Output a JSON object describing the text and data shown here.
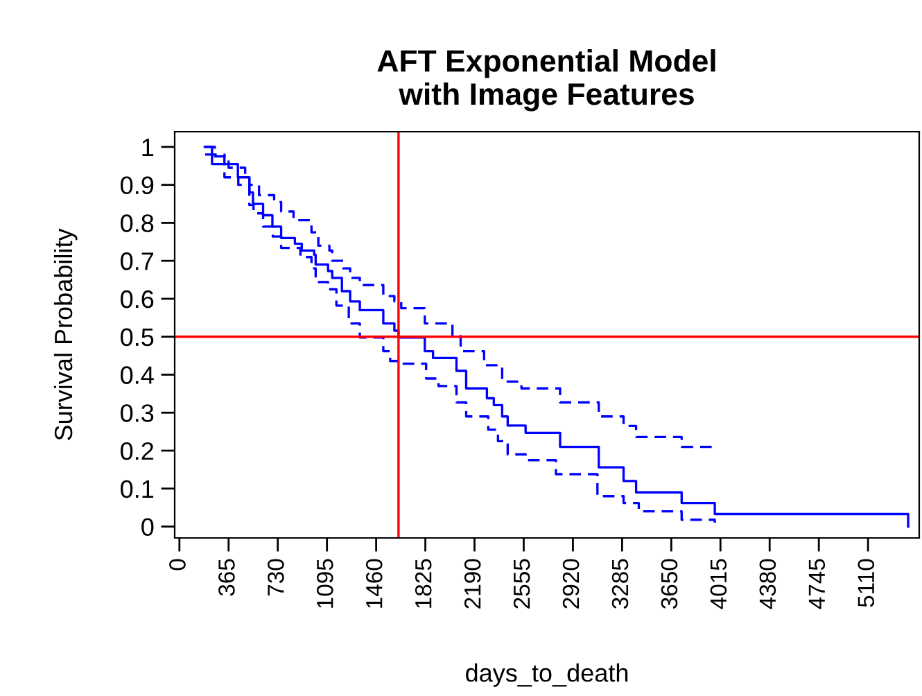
{
  "chart_data": {
    "type": "step",
    "title": "AFT Exponential Model\nwith Image Features",
    "xlabel": "days_to_death",
    "ylabel": "Survival Probability",
    "xlim": [
      -35,
      5490
    ],
    "ylim": [
      -0.03,
      1.04
    ],
    "xticks": [
      0,
      365,
      730,
      1095,
      1460,
      1825,
      2190,
      2555,
      2920,
      3285,
      3650,
      4015,
      4380,
      4745,
      5110
    ],
    "yticks": [
      0,
      {
        "value": 0.1,
        "label": "0.1"
      },
      {
        "value": 0.2,
        "label": "0.2"
      },
      {
        "value": 0.3,
        "label": "0.3"
      },
      {
        "value": 0.4,
        "label": "0.4"
      },
      {
        "value": 0.5,
        "label": "0.5"
      },
      {
        "value": 0.6,
        "label": "0.6"
      },
      {
        "value": 0.7,
        "label": "0.7"
      },
      {
        "value": 0.8,
        "label": "0.8"
      },
      {
        "value": 0.9,
        "label": "0.9"
      },
      1
    ],
    "grid": false,
    "legend": false,
    "ref_lines": [
      {
        "axis": "x",
        "value": 1626,
        "color": "#ff0000"
      },
      {
        "axis": "y",
        "value": 0.5,
        "color": "#ff0000"
      }
    ],
    "series": [
      {
        "color": "#0000ff",
        "line_style": "solid",
        "x": [
          188,
          242,
          434,
          519,
          546,
          621,
          690,
          755,
          857,
          908,
          1000,
          1011,
          1103,
          1134,
          1206,
          1267,
          1339,
          1513,
          1595,
          1626,
          1821,
          1882,
          2056,
          2128,
          2282,
          2333,
          2395,
          2436,
          2569,
          2825,
          3112,
          3296,
          3389,
          3727,
          3973,
          5408
        ],
        "values": [
          1.0,
          0.955,
          0.92,
          0.88,
          0.85,
          0.82,
          0.79,
          0.76,
          0.745,
          0.727,
          0.716,
          0.69,
          0.673,
          0.655,
          0.62,
          0.593,
          0.57,
          0.535,
          0.516,
          0.498,
          0.462,
          0.444,
          0.41,
          0.364,
          0.338,
          0.32,
          0.29,
          0.266,
          0.247,
          0.21,
          0.156,
          0.12,
          0.09,
          0.062,
          0.033,
          0
        ]
      },
      {
        "color": "#0000ff",
        "line_style": "dashed",
        "x": [
          191,
          263,
          365,
          488,
          519,
          591,
          703,
          755,
          847,
          980,
          1031,
          1113,
          1134,
          1216,
          1267,
          1339,
          1513,
          1595,
          1646,
          1821,
          2026,
          2087,
          2261,
          2395,
          2538,
          2825,
          3112,
          3296,
          3389,
          3727,
          3973
        ],
        "values": [
          1.0,
          0.975,
          0.945,
          0.927,
          0.9,
          0.873,
          0.855,
          0.83,
          0.807,
          0.775,
          0.74,
          0.727,
          0.7,
          0.68,
          0.655,
          0.636,
          0.607,
          0.593,
          0.575,
          0.535,
          0.502,
          0.462,
          0.425,
          0.382,
          0.364,
          0.327,
          0.29,
          0.265,
          0.236,
          0.21,
          0.2
        ]
      },
      {
        "color": "#0000ff",
        "line_style": "dashed",
        "x": [
          191,
          334,
          437,
          519,
          550,
          621,
          693,
          755,
          898,
          980,
          1011,
          1103,
          1165,
          1257,
          1339,
          1513,
          1564,
          1626,
          1831,
          1923,
          2056,
          2128,
          2292,
          2364,
          2436,
          2569,
          2794,
          3102,
          3296,
          3409,
          3727,
          3973
        ],
        "values": [
          0.98,
          0.92,
          0.9,
          0.847,
          0.825,
          0.79,
          0.764,
          0.734,
          0.71,
          0.68,
          0.644,
          0.625,
          0.582,
          0.535,
          0.498,
          0.462,
          0.436,
          0.429,
          0.39,
          0.37,
          0.327,
          0.29,
          0.255,
          0.225,
          0.19,
          0.175,
          0.138,
          0.08,
          0.062,
          0.04,
          0.018,
          0.01
        ]
      }
    ]
  }
}
